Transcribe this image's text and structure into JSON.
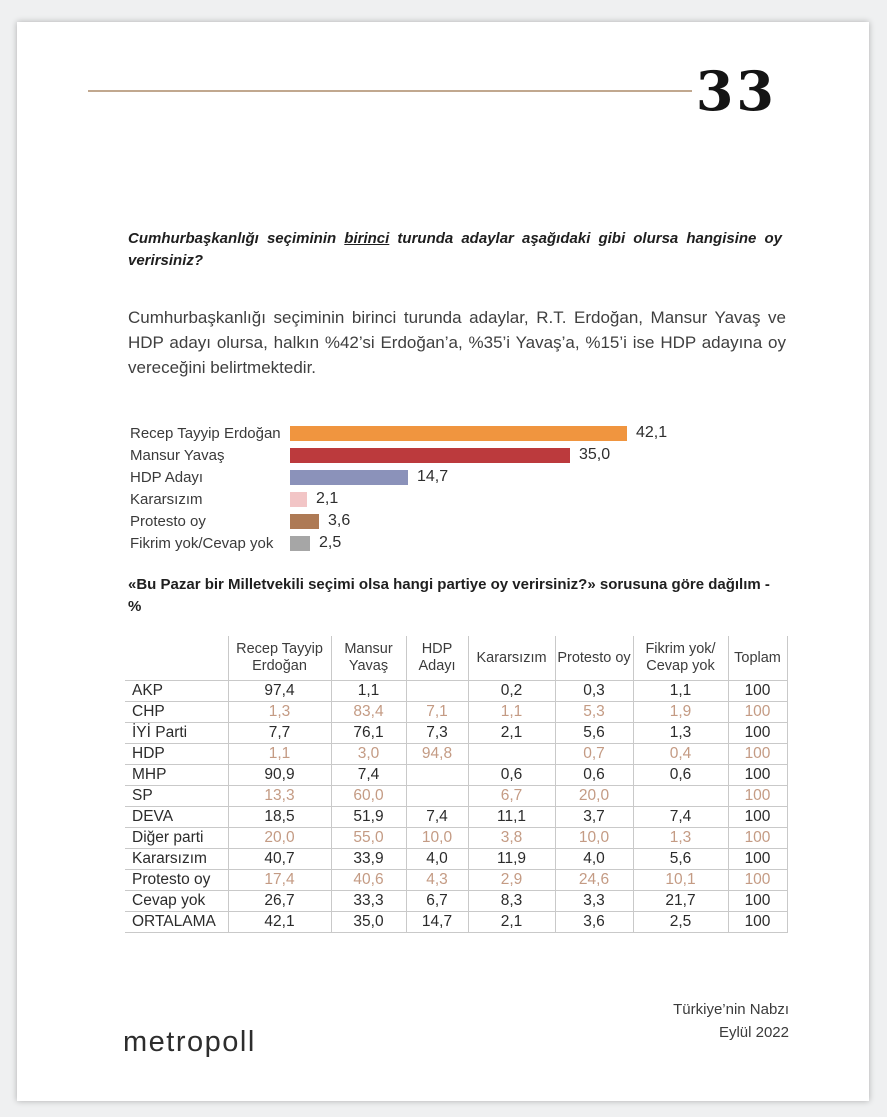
{
  "page_number": "33",
  "question": {
    "part1": "Cumhurbaşkanlığı seçiminin ",
    "underlined": "birinci",
    "part2": " turunda adaylar aşağıdaki gibi olursa hangisine oy verirsiniz?"
  },
  "intro": "Cumhurbaşkanlığı seçiminin birinci turunda adaylar, R.T. Erdoğan, Mansur Yavaş ve HDP adayı olursa, halkın %42’si Erdoğan’a, %35’i Yavaş’a, %15’i ise HDP adayına oy vereceğini belirtmektedir.",
  "chart_data": {
    "type": "bar",
    "orientation": "horizontal",
    "categories": [
      "Recep Tayyip Erdoğan",
      "Mansur Yavaş",
      "HDP Adayı",
      "Kararsızım",
      "Protesto oy",
      "Fikrim yok/Cevap yok"
    ],
    "values": [
      42.1,
      35.0,
      14.7,
      2.1,
      3.6,
      2.5
    ],
    "value_labels": [
      "42,1",
      "35,0",
      "14,7",
      "2,1",
      "3,6",
      "2,5"
    ],
    "colors": [
      "#F0953F",
      "#BC3A3D",
      "#8B92BA",
      "#F2C5C6",
      "#AE7A55",
      "#A6A6A6"
    ],
    "xlim": [
      0,
      45
    ],
    "title": "",
    "xlabel": "",
    "ylabel": "",
    "legend": "none",
    "grid": false
  },
  "section_title": "«Bu Pazar bir Milletvekili seçimi olsa hangi partiye oy verirsiniz?» sorusuna göre dağılım - %",
  "table": {
    "headers": [
      "",
      "Recep Tayyip\nErdoğan",
      "Mansur\nYavaş",
      "HDP\nAdayı",
      "Kararsızım",
      "Protesto oy",
      "Fikrim yok/\nCevap yok",
      "Toplam"
    ],
    "rows": [
      {
        "label": "AKP",
        "muted": false,
        "values": [
          "97,4",
          "1,1",
          "",
          "0,2",
          "0,3",
          "1,1",
          "100"
        ]
      },
      {
        "label": "CHP",
        "muted": true,
        "values": [
          "1,3",
          "83,4",
          "7,1",
          "1,1",
          "5,3",
          "1,9",
          "100"
        ]
      },
      {
        "label": "İYİ Parti",
        "muted": false,
        "values": [
          "7,7",
          "76,1",
          "7,3",
          "2,1",
          "5,6",
          "1,3",
          "100"
        ]
      },
      {
        "label": "HDP",
        "muted": true,
        "values": [
          "1,1",
          "3,0",
          "94,8",
          "",
          "0,7",
          "0,4",
          "100"
        ]
      },
      {
        "label": "MHP",
        "muted": false,
        "values": [
          "90,9",
          "7,4",
          "",
          "0,6",
          "0,6",
          "0,6",
          "100"
        ]
      },
      {
        "label": "SP",
        "muted": true,
        "values": [
          "13,3",
          "60,0",
          "",
          "6,7",
          "20,0",
          "",
          "100"
        ]
      },
      {
        "label": "DEVA",
        "muted": false,
        "values": [
          "18,5",
          "51,9",
          "7,4",
          "11,1",
          "3,7",
          "7,4",
          "100"
        ]
      },
      {
        "label": "Diğer parti",
        "muted": true,
        "values": [
          "20,0",
          "55,0",
          "10,0",
          "3,8",
          "10,0",
          "1,3",
          "100"
        ]
      },
      {
        "label": "Kararsızım",
        "muted": false,
        "values": [
          "40,7",
          "33,9",
          "4,0",
          "11,9",
          "4,0",
          "5,6",
          "100"
        ]
      },
      {
        "label": "Protesto oy",
        "muted": true,
        "values": [
          "17,4",
          "40,6",
          "4,3",
          "2,9",
          "24,6",
          "10,1",
          "100"
        ]
      },
      {
        "label": "Cevap yok",
        "muted": false,
        "values": [
          "26,7",
          "33,3",
          "6,7",
          "8,3",
          "3,3",
          "21,7",
          "100"
        ]
      },
      {
        "label": "ORTALAMA",
        "muted": false,
        "values": [
          "42,1",
          "35,0",
          "14,7",
          "2,1",
          "3,6",
          "2,5",
          "100"
        ]
      }
    ]
  },
  "footer": {
    "note_line1": "Türkiye’nin Nabzı",
    "note_line2": "Eylül 2022",
    "logo": "metropoll"
  },
  "colors": {
    "rule": "#c1a88f",
    "muted_row_text": "#c49b84",
    "grid_line": "#c9c9c9"
  }
}
